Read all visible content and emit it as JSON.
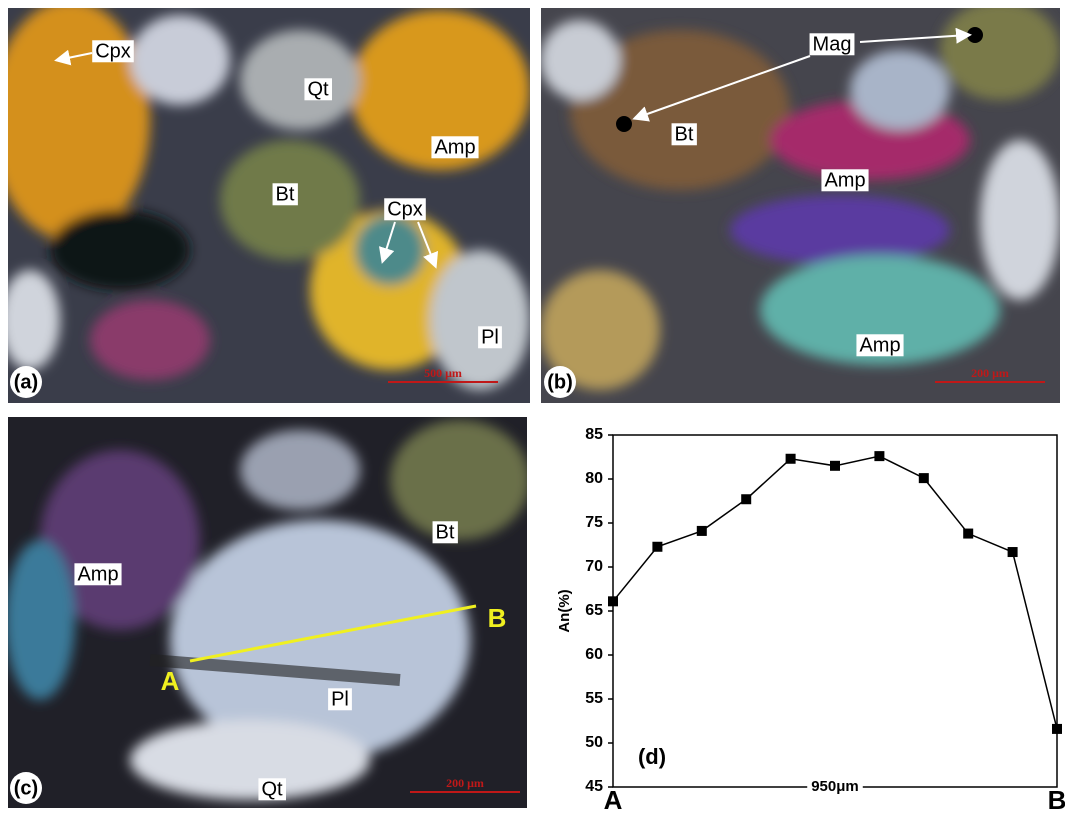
{
  "panels": [
    {
      "tag": "(a)",
      "labels": [
        "Cpx",
        "Qt",
        "Amp",
        "Bt",
        "Cpx",
        "Pl"
      ],
      "scale_bar": "500 μm"
    },
    {
      "tag": "(b)",
      "labels": [
        "Mag",
        "Bt",
        "Amp",
        "Amp"
      ],
      "scale_bar": "200 μm"
    },
    {
      "tag": "(c)",
      "labels": [
        "Amp",
        "Bt",
        "Pl",
        "Qt"
      ],
      "point_labels": [
        "A",
        "B"
      ],
      "scale_bar": "200 μm"
    }
  ],
  "chart_data": {
    "type": "line",
    "tag": "(d)",
    "y_label": "An(%)",
    "x_label": "950μm",
    "categories": [
      "A",
      null,
      null,
      null,
      null,
      null,
      null,
      null,
      null,
      null,
      "B"
    ],
    "values": [
      66.1,
      72.3,
      74.1,
      77.7,
      82.3,
      81.5,
      82.6,
      80.1,
      73.8,
      71.7,
      51.6
    ],
    "color": "#000000",
    "ylim": [
      45,
      85
    ],
    "yticks": [
      45,
      50,
      55,
      60,
      65,
      70,
      75,
      80,
      85
    ]
  }
}
